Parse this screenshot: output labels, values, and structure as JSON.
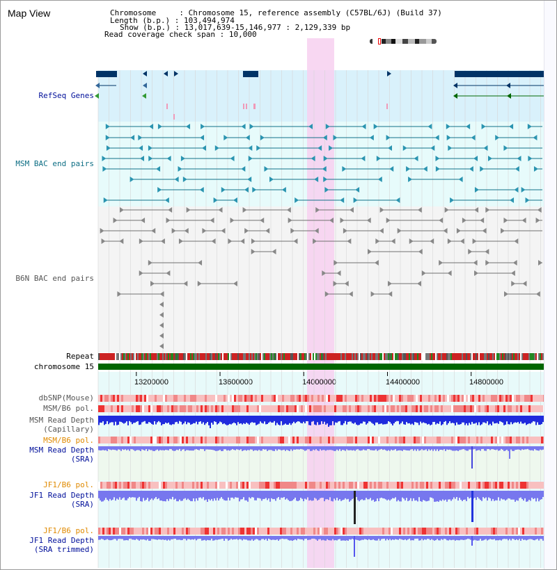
{
  "header": {
    "title": "Map View",
    "chromosome_label": "Chromosome",
    "chromosome_value": "Chromosome 15, reference assembly (C57BL/6J) (Build 37)",
    "length_label": "Length (b.p.)",
    "length_value": "103,494,974",
    "show_label": "Show (b.p.)",
    "show_value": "13,017,639-15,146,977 : 2,129,339 bp",
    "span_label": "Read coverage check span",
    "span_value": "10,000"
  },
  "tracks": {
    "refseq": "RefSeq Genes",
    "msm_bac": "MSM BAC end pairs",
    "b6n_bac": "B6N BAC end pairs",
    "repeat": "Repeat",
    "chromosome": "chromosome 15",
    "dbsnp": "dbSNP(Mouse)",
    "msm_b6_pol_1": "MSM/B6 pol.",
    "msm_read_depth_cap_1": "MSM Read Depth",
    "msm_read_depth_cap_2": "(Capillary)",
    "msm_b6_pol_2": "MSM/B6 pol.",
    "msm_read_depth_sra_1": "MSM Read Depth",
    "msm_read_depth_sra_2": "(SRA)",
    "jf1_b6_pol_1": "JF1/B6 pol.",
    "jf1_read_depth_sra_1": "JF1 Read Depth",
    "jf1_read_depth_sra_2": "(SRA)",
    "jf1_b6_pol_2": "JF1/B6 pol.",
    "jf1_read_depth_trim_1": "JF1 Read Depth",
    "jf1_read_depth_trim_2": "(SRA trimmed)"
  },
  "axis": {
    "ticks": [
      "13200000",
      "13600000",
      "14000000",
      "14400000",
      "14800000"
    ],
    "tick_values": [
      13200000,
      13600000,
      14000000,
      14400000,
      14800000
    ],
    "range": [
      13017639,
      15146977
    ]
  },
  "highlight": {
    "start": 14016000,
    "end": 14147000
  },
  "colors": {
    "refseq_bg": "#d9f1fb",
    "msm_bg": "#e7fbfb",
    "b6n_bg": "#f4f4f4",
    "highlight": "#f7d0f0",
    "gene": "#003366",
    "msm_feature": "#117088",
    "b6n_feature": "#707070",
    "chromosome": "#006600",
    "depth_blue": "#1f2bdd",
    "depth_light": "#7777ee",
    "pol_red": "#ee3333"
  }
}
